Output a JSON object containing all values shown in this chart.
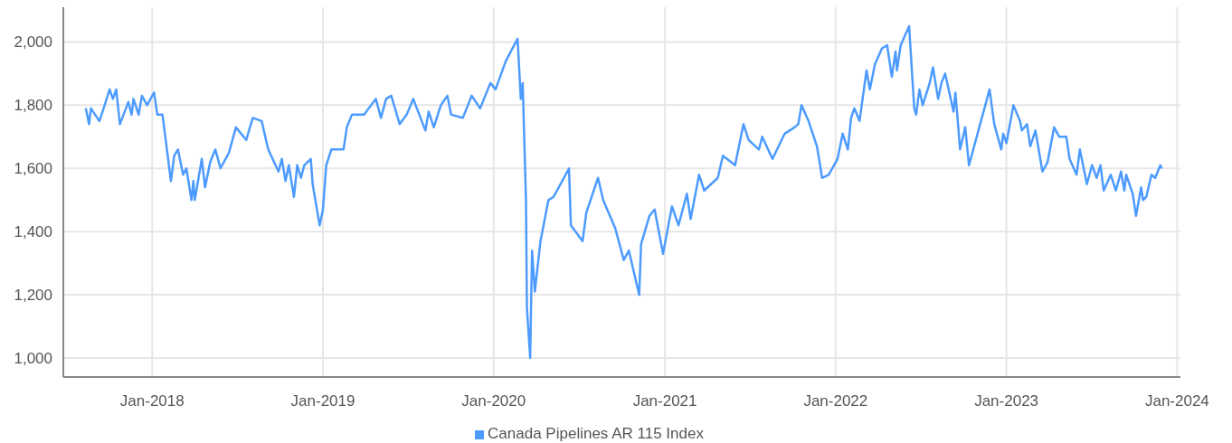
{
  "chart_data": {
    "type": "line",
    "legend": "bottom",
    "grid": true,
    "marker": "none",
    "line_style": "solid",
    "xlim": [
      "2017-06-25",
      "2024-01-08"
    ],
    "xticks": [
      {
        "value": "2018-01",
        "label": "Jan-2018"
      },
      {
        "value": "2019-01",
        "label": "Jan-2019"
      },
      {
        "value": "2020-01",
        "label": "Jan-2020"
      },
      {
        "value": "2021-01",
        "label": "Jan-2021"
      },
      {
        "value": "2022-01",
        "label": "Jan-2022"
      },
      {
        "value": "2023-01",
        "label": "Jan-2023"
      },
      {
        "value": "2024-01",
        "label": "Jan-2024"
      }
    ],
    "ylim": [
      940,
      2110
    ],
    "yticks": [
      {
        "value": 1000,
        "label": "1,000"
      },
      {
        "value": 1200,
        "label": "1,200"
      },
      {
        "value": 1400,
        "label": "1,400"
      },
      {
        "value": 1600,
        "label": "1,600"
      },
      {
        "value": 1800,
        "label": "1,800"
      },
      {
        "value": 2000,
        "label": "2,000"
      }
    ],
    "x": [
      "2017-08-12",
      "2017-08-19",
      "2017-08-23",
      "2017-09-10",
      "2017-09-17",
      "2017-10-02",
      "2017-10-09",
      "2017-10-16",
      "2017-10-24",
      "2017-11-11",
      "2017-11-18",
      "2017-11-22",
      "2017-12-03",
      "2017-12-10",
      "2017-12-21",
      "2018-01-05",
      "2018-01-12",
      "2018-01-23",
      "2018-02-10",
      "2018-02-17",
      "2018-02-25",
      "2018-03-08",
      "2018-03-15",
      "2018-03-26",
      "2018-03-30",
      "2018-04-02",
      "2018-04-17",
      "2018-04-24",
      "2018-05-05",
      "2018-05-16",
      "2018-05-27",
      "2018-06-14",
      "2018-06-29",
      "2018-07-21",
      "2018-08-04",
      "2018-08-23",
      "2018-09-06",
      "2018-09-28",
      "2018-10-05",
      "2018-10-13",
      "2018-10-20",
      "2018-10-31",
      "2018-11-07",
      "2018-11-15",
      "2018-11-22",
      "2018-12-06",
      "2018-12-10",
      "2018-12-25",
      "2019-01-01",
      "2019-01-08",
      "2019-01-19",
      "2019-02-14",
      "2019-02-21",
      "2019-03-04",
      "2019-03-30",
      "2019-04-24",
      "2019-05-05",
      "2019-05-16",
      "2019-05-27",
      "2019-06-14",
      "2019-06-29",
      "2019-07-13",
      "2019-08-08",
      "2019-08-15",
      "2019-08-26",
      "2019-09-10",
      "2019-09-24",
      "2019-10-02",
      "2019-10-27",
      "2019-11-15",
      "2019-12-03",
      "2019-12-25",
      "2020-01-05",
      "2020-01-27",
      "2020-02-21",
      "2020-02-28",
      "2020-03-03",
      "2020-03-10",
      "2020-03-12",
      "2020-03-19",
      "2020-03-23",
      "2020-03-29",
      "2020-04-10",
      "2020-04-27",
      "2020-05-08",
      "2020-06-10",
      "2020-06-14",
      "2020-07-09",
      "2020-07-17",
      "2020-08-11",
      "2020-08-22",
      "2020-09-17",
      "2020-10-05",
      "2020-10-16",
      "2020-11-07",
      "2020-11-11",
      "2020-11-29",
      "2020-12-10",
      "2020-12-28",
      "2021-01-16",
      "2021-01-30",
      "2021-02-17",
      "2021-02-25",
      "2021-03-15",
      "2021-03-26",
      "2021-04-24",
      "2021-05-05",
      "2021-05-31",
      "2021-06-18",
      "2021-06-29",
      "2021-07-21",
      "2021-07-28",
      "2021-08-19",
      "2021-09-14",
      "2021-10-05",
      "2021-10-13",
      "2021-10-20",
      "2021-11-04",
      "2021-11-22",
      "2021-12-03",
      "2021-12-17",
      "2022-01-05",
      "2022-01-16",
      "2022-01-27",
      "2022-02-03",
      "2022-02-10",
      "2022-02-21",
      "2022-03-08",
      "2022-03-15",
      "2022-03-26",
      "2022-04-10",
      "2022-04-21",
      "2022-05-01",
      "2022-05-09",
      "2022-05-12",
      "2022-05-20",
      "2022-06-07",
      "2022-06-18",
      "2022-06-22",
      "2022-06-29",
      "2022-07-06",
      "2022-07-21",
      "2022-07-28",
      "2022-08-08",
      "2022-08-15",
      "2022-08-23",
      "2022-09-10",
      "2022-09-14",
      "2022-09-24",
      "2022-10-05",
      "2022-10-13",
      "2022-11-04",
      "2022-11-26",
      "2022-12-06",
      "2022-12-21",
      "2022-12-25",
      "2023-01-01",
      "2023-01-16",
      "2023-01-30",
      "2023-02-03",
      "2023-02-14",
      "2023-02-21",
      "2023-03-04",
      "2023-03-19",
      "2023-03-30",
      "2023-04-13",
      "2023-04-24",
      "2023-05-09",
      "2023-05-16",
      "2023-05-31",
      "2023-06-07",
      "2023-06-22",
      "2023-07-03",
      "2023-07-13",
      "2023-07-21",
      "2023-07-28",
      "2023-08-12",
      "2023-08-23",
      "2023-09-03",
      "2023-09-10",
      "2023-09-14",
      "2023-09-28",
      "2023-10-05",
      "2023-10-16",
      "2023-10-20",
      "2023-10-27",
      "2023-11-07",
      "2023-11-15",
      "2023-11-26",
      "2023-11-29"
    ],
    "series": [
      {
        "name": "Canada Pipelines AR 115 Index",
        "color": "#4d9bff",
        "values": [
          1790,
          1740,
          1790,
          1750,
          1780,
          1850,
          1820,
          1850,
          1740,
          1810,
          1770,
          1820,
          1770,
          1830,
          1800,
          1840,
          1770,
          1770,
          1560,
          1640,
          1660,
          1580,
          1600,
          1500,
          1560,
          1500,
          1630,
          1540,
          1620,
          1660,
          1600,
          1650,
          1730,
          1690,
          1760,
          1750,
          1660,
          1590,
          1630,
          1560,
          1610,
          1510,
          1610,
          1570,
          1610,
          1630,
          1550,
          1420,
          1470,
          1610,
          1660,
          1660,
          1730,
          1770,
          1770,
          1820,
          1760,
          1820,
          1830,
          1740,
          1770,
          1820,
          1720,
          1780,
          1730,
          1800,
          1830,
          1770,
          1760,
          1830,
          1790,
          1870,
          1850,
          1940,
          2010,
          1820,
          1870,
          1500,
          1160,
          1000,
          1340,
          1210,
          1370,
          1500,
          1510,
          1600,
          1420,
          1370,
          1460,
          1570,
          1500,
          1410,
          1310,
          1340,
          1200,
          1360,
          1450,
          1470,
          1330,
          1480,
          1420,
          1520,
          1440,
          1580,
          1530,
          1570,
          1640,
          1610,
          1740,
          1690,
          1660,
          1700,
          1630,
          1710,
          1730,
          1740,
          1800,
          1750,
          1670,
          1570,
          1580,
          1630,
          1710,
          1660,
          1760,
          1790,
          1750,
          1910,
          1850,
          1930,
          1980,
          1990,
          1890,
          1970,
          1910,
          1990,
          2050,
          1790,
          1770,
          1850,
          1800,
          1870,
          1920,
          1820,
          1870,
          1900,
          1780,
          1840,
          1660,
          1730,
          1610,
          1730,
          1850,
          1740,
          1660,
          1710,
          1680,
          1800,
          1750,
          1720,
          1740,
          1670,
          1720,
          1590,
          1620,
          1730,
          1700,
          1700,
          1630,
          1580,
          1660,
          1550,
          1610,
          1570,
          1610,
          1530,
          1580,
          1530,
          1590,
          1530,
          1580,
          1520,
          1450,
          1540,
          1500,
          1510,
          1580,
          1570,
          1610,
          1600
        ]
      }
    ]
  }
}
